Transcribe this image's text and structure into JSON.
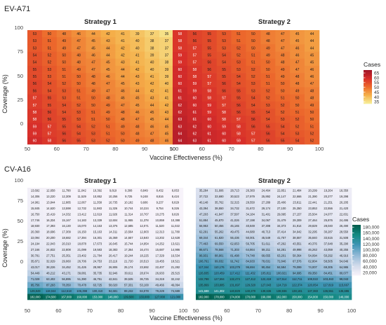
{
  "chart_data": [
    {
      "type": "heatmap",
      "panel_label": "EV-A71",
      "xlabel": "Vaccine Effectiveness (%)",
      "ylabel": "Coverage (%)",
      "x_ticks": [
        "50",
        "60",
        "70",
        "80",
        "90",
        "100"
      ],
      "y_ticks": [
        "0",
        "25",
        "50",
        "75",
        "100"
      ],
      "xlim": [
        50,
        100
      ],
      "ylim": [
        0,
        100
      ],
      "legend": {
        "title": "Cases",
        "ticks": [
          "35",
          "40",
          "45",
          "50",
          "55",
          "60",
          "65"
        ],
        "range": [
          33,
          68
        ],
        "colors": [
          "#f6ef99",
          "#f5b04a",
          "#ed6a2c",
          "#d72d2a",
          "#9e1428"
        ]
      },
      "facets": [
        {
          "title": "Strategy 1",
          "values": [
            [
              53,
              50,
              48,
              46,
              44,
              42,
              41,
              39,
              37,
              35
            ],
            [
              53,
              51,
              49,
              47,
              45,
              43,
              41,
              40,
              38,
              37
            ],
            [
              53,
              51,
              49,
              47,
              45,
              44,
              42,
              40,
              38,
              37
            ],
            [
              54,
              52,
              50,
              48,
              46,
              44,
              42,
              41,
              39,
              37
            ],
            [
              54,
              52,
              50,
              48,
              47,
              45,
              43,
              41,
              40,
              38
            ],
            [
              55,
              53,
              51,
              49,
              47,
              45,
              44,
              42,
              40,
              39
            ],
            [
              55,
              53,
              51,
              50,
              48,
              46,
              44,
              43,
              41,
              39
            ],
            [
              56,
              54,
              52,
              50,
              48,
              47,
              45,
              43,
              42,
              40
            ],
            [
              56,
              54,
              53,
              51,
              49,
              47,
              46,
              44,
              42,
              41
            ],
            [
              57,
              55,
              53,
              51,
              50,
              48,
              46,
              45,
              43,
              41
            ],
            [
              57,
              55,
              54,
              52,
              50,
              49,
              47,
              45,
              44,
              42
            ],
            [
              58,
              56,
              54,
              53,
              51,
              49,
              48,
              46,
              45,
              43
            ],
            [
              58,
              56,
              55,
              53,
              51,
              50,
              48,
              47,
              45,
              44
            ],
            [
              59,
              57,
              55,
              54,
              52,
              51,
              49,
              48,
              46,
              45
            ],
            [
              59,
              57,
              56,
              54,
              53,
              51,
              50,
              48,
              47,
              45
            ],
            [
              60,
              58,
              56,
              55,
              53,
              52,
              50,
              49,
              48,
              46
            ]
          ]
        },
        {
          "title": "Strategy 2",
          "values": [
            [
              58,
              56,
              55,
              53,
              51,
              50,
              48,
              47,
              45,
              44
            ],
            [
              58,
              56,
              55,
              53,
              51,
              50,
              48,
              47,
              45,
              44
            ],
            [
              58,
              57,
              55,
              53,
              52,
              50,
              49,
              47,
              46,
              44
            ],
            [
              59,
              57,
              55,
              54,
              52,
              51,
              49,
              48,
              46,
              45
            ],
            [
              59,
              57,
              56,
              54,
              53,
              51,
              50,
              48,
              47,
              45
            ],
            [
              60,
              58,
              56,
              55,
              53,
              52,
              50,
              49,
              47,
              46
            ],
            [
              60,
              58,
              57,
              55,
              54,
              52,
              51,
              49,
              48,
              46
            ],
            [
              60,
              59,
              57,
              56,
              54,
              53,
              51,
              50,
              48,
              47
            ],
            [
              61,
              59,
              58,
              56,
              55,
              53,
              52,
              50,
              49,
              48
            ],
            [
              61,
              60,
              58,
              57,
              55,
              54,
              52,
              51,
              50,
              48
            ],
            [
              62,
              60,
              59,
              57,
              56,
              54,
              53,
              52,
              50,
              49
            ],
            [
              62,
              61,
              59,
              58,
              56,
              55,
              54,
              52,
              51,
              50
            ],
            [
              63,
              61,
              60,
              58,
              57,
              56,
              54,
              53,
              52,
              50
            ],
            [
              63,
              62,
              60,
              59,
              58,
              56,
              55,
              54,
              52,
              51
            ],
            [
              64,
              62,
              61,
              60,
              58,
              57,
              56,
              54,
              53,
              52
            ],
            [
              64,
              63,
              61,
              60,
              59,
              57,
              56,
              55,
              54,
              52
            ]
          ]
        }
      ]
    },
    {
      "type": "heatmap",
      "panel_label": "CV-A16",
      "xlabel": "Vaccine Effectiveness (%)",
      "ylabel": "Coverage (%)",
      "x_ticks": [
        "50",
        "60",
        "70",
        "80",
        "90",
        "100"
      ],
      "y_ticks": [
        "0",
        "25",
        "50",
        "75",
        "100"
      ],
      "xlim": [
        50,
        100
      ],
      "ylim": [
        0,
        100
      ],
      "legend": {
        "title": "Cases",
        "ticks": [
          "20,000",
          "40,000",
          "60,000",
          "80,000",
          "100,000",
          "120,000",
          "140,000",
          "160,000",
          "180,000"
        ],
        "range": [
          10000,
          188000
        ],
        "colors": [
          "#f7f3fa",
          "#cfd9ea",
          "#8fb8d6",
          "#3f95b5",
          "#148a82",
          "#015b4a"
        ]
      },
      "facets": [
        {
          "title": "Strategy 1",
          "values": [
            [
              13692,
              12658,
              11788,
              11042,
              10392,
              9819,
              9308,
              8849,
              8432,
              8053
            ],
            [
              14306,
              13220,
              12309,
              11529,
              10852,
              10256,
              9725,
              9248,
              8816,
              8424
            ],
            [
              14981,
              13844,
              12885,
              12067,
              11358,
              10735,
              10182,
              9686,
              9237,
              8829
            ],
            [
              15845,
              14620,
              13598,
              12732,
              11983,
              11326,
              10744,
              10224,
              9754,
              9326
            ],
            [
              16750,
              15419,
              14332,
              13412,
              12619,
              11926,
              11314,
              10767,
              10275,
              9826
            ],
            [
              17746,
              16334,
              15167,
              14183,
              13339,
              12604,
              11955,
              11378,
              10859,
              10388
            ],
            [
              18930,
              17393,
              16130,
              15070,
              14163,
              13376,
              12685,
              12071,
              11520,
              11022
            ],
            [
              20360,
              18696,
              17309,
              16150,
              15163,
              14311,
              13564,
              12903,
              12313,
              11780
            ],
            [
              22094,
              20200,
              18682,
              17394,
              16301,
              15369,
              14557,
              13840,
              13202,
              12628
            ],
            [
              24194,
              22043,
              20310,
              18878,
              17673,
              16645,
              15744,
              14954,
              14252,
              13621
            ],
            [
              27166,
              24832,
              22808,
              21099,
              19583,
              18383,
              17364,
              16474,
              15687,
              14986
            ],
            [
              30781,
              27751,
              25351,
              23402,
              21784,
              20417,
              19244,
              18225,
              17329,
              16534
            ],
            [
              35871,
              32029,
              29060,
              26706,
              24753,
              23116,
              21720,
              20513,
              19455,
              18521
            ],
            [
              43017,
              38226,
              34452,
              31426,
              28957,
              26906,
              25174,
              23692,
              22407,
              21282
            ],
            [
              54449,
              48212,
              43171,
              39081,
              35735,
              32946,
              30611,
              28674,
              26933,
              25515
            ],
            [
              71028,
              63402,
              56895,
              51390,
              46751,
              42841,
              39535,
              36725,
              34319,
              32242
            ],
            [
              95756,
              87293,
              78350,
              70478,
              63725,
              58020,
              57331,
              53100,
              49466,
              46094
            ],
            [
              129849,
              119044,
              112618,
              106398,
              100410,
              94681,
              89232,
              84078,
              79229,
              74689
            ],
            [
              182000,
              174500,
              167000,
              160000,
              153000,
              146000,
              139500,
              133000,
              127000,
              121000
            ]
          ]
        },
        {
          "title": "Strategy 2",
          "values": [
            [
              35284,
              31606,
              28713,
              26383,
              24464,
              22851,
              21484,
              20299,
              19264,
              18350
            ],
            [
              37722,
              33690,
              30523,
              27979,
              25892,
              24147,
              22666,
              21390,
              20277,
              19298
            ],
            [
              40148,
              35762,
              32315,
              29550,
              27289,
              25406,
              23811,
              22441,
              21251,
              20205
            ],
            [
              43394,
              38550,
              34732,
              31672,
              29174,
              27100,
              25350,
              23853,
              22556,
              21420
            ],
            [
              47203,
              41847,
              37597,
              34184,
              31401,
              29095,
              27157,
              25504,
              24077,
              22831
            ],
            [
              51884,
              45870,
              41026,
              37198,
              34067,
              31479,
              29309,
              27464,
              25876,
              24495
            ],
            [
              56953,
              50456,
              45165,
              40849,
              37308,
              34373,
              31914,
              29829,
              28040,
              26490
            ],
            [
              62291,
              55262,
              49475,
              44680,
              40713,
              37414,
              34642,
              32295,
              30287,
              28550
            ],
            [
              69344,
              61820,
              55436,
              50001,
              45549,
              41757,
              38557,
              35840,
              33515,
              31508
            ],
            [
              77463,
              69550,
              62653,
              56705,
              51611,
              47262,
              43551,
              40376,
              37648,
              35290
            ],
            [
              86671,
              78568,
              71303,
              64864,
              59211,
              54281,
              49998,
              46263,
              43059,
              40255
            ],
            [
              96931,
              88901,
              81498,
              74748,
              68655,
              63201,
              58364,
              54094,
              50292,
              46916
            ],
            [
              106761,
              99032,
              91742,
              84933,
              78631,
              72846,
              67576,
              62804,
              58505,
              54646
            ],
            [
              117344,
              110176,
              103279,
              96694,
              90454,
              84584,
              79099,
              74007,
              69305,
              64986
            ],
            [
              126835,
              120459,
              117412,
              111432,
              105811,
              100021,
              94695,
              89350,
              84451,
              80077
            ],
            [
              132788,
              127594,
              132474,
              127412,
              122419,
              117514,
              112711,
              108022,
              103463,
              99043
            ],
            [
              135869,
              133885,
              131697,
              129320,
              127043,
              124719,
              122374,
              120054,
              117819,
              115667
            ],
            [
              141688,
              141302,
              140829,
              140270,
              139636,
              138936,
              138181,
              137383,
              136551,
              135696
            ],
            [
              182000,
              178000,
              174000,
              170000,
              166000,
              162000,
              158000,
              154000,
              150000,
              146000
            ]
          ]
        }
      ]
    }
  ]
}
